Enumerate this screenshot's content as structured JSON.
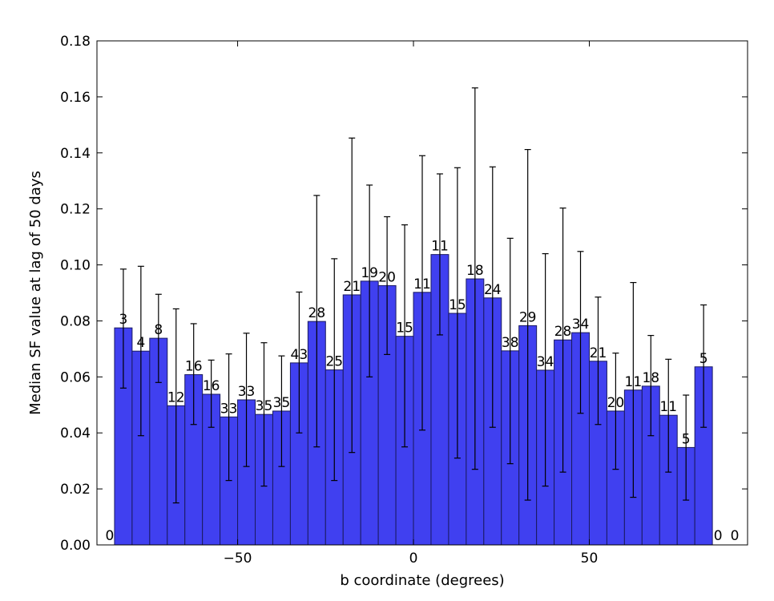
{
  "chart_data": {
    "type": "bar",
    "xlabel": "b coordinate (degrees)",
    "ylabel": "Median SF value at lag of 50 days",
    "xlim": [
      -90,
      95
    ],
    "ylim": [
      0,
      0.18
    ],
    "xticks": [
      -50,
      0,
      50
    ],
    "xtick_labels": [
      "−50",
      "0",
      "50"
    ],
    "yticks": [
      0,
      0.02,
      0.04,
      0.06,
      0.08,
      0.1,
      0.12,
      0.14,
      0.16,
      0.18
    ],
    "ytick_labels": [
      "0.00",
      "0.02",
      "0.04",
      "0.06",
      "0.08",
      "0.10",
      "0.12",
      "0.14",
      "0.16",
      "0.18"
    ],
    "bar_color": "#4040f0",
    "bar_edge_color": "#1a1a60",
    "bin_width": 5,
    "bins": [
      {
        "left": -90,
        "value": 0,
        "err_low": 0,
        "err_high": 0,
        "count": "0"
      },
      {
        "left": -85,
        "value": 0.0775,
        "err_low": 0.056,
        "err_high": 0.0985,
        "count": "3"
      },
      {
        "left": -80,
        "value": 0.0692,
        "err_low": 0.039,
        "err_high": 0.0995,
        "count": "4"
      },
      {
        "left": -75,
        "value": 0.0738,
        "err_low": 0.058,
        "err_high": 0.0895,
        "count": "8"
      },
      {
        "left": -70,
        "value": 0.0497,
        "err_low": 0.015,
        "err_high": 0.0843,
        "count": "12"
      },
      {
        "left": -65,
        "value": 0.0608,
        "err_low": 0.043,
        "err_high": 0.079,
        "count": "16"
      },
      {
        "left": -60,
        "value": 0.0538,
        "err_low": 0.042,
        "err_high": 0.066,
        "count": "16"
      },
      {
        "left": -55,
        "value": 0.0457,
        "err_low": 0.023,
        "err_high": 0.0682,
        "count": "33"
      },
      {
        "left": -50,
        "value": 0.0518,
        "err_low": 0.028,
        "err_high": 0.0756,
        "count": "33"
      },
      {
        "left": -45,
        "value": 0.0466,
        "err_low": 0.021,
        "err_high": 0.0722,
        "count": "35"
      },
      {
        "left": -40,
        "value": 0.0478,
        "err_low": 0.028,
        "err_high": 0.0675,
        "count": "35"
      },
      {
        "left": -35,
        "value": 0.065,
        "err_low": 0.04,
        "err_high": 0.0903,
        "count": "43"
      },
      {
        "left": -30,
        "value": 0.0798,
        "err_low": 0.035,
        "err_high": 0.1248,
        "count": "28"
      },
      {
        "left": -25,
        "value": 0.0625,
        "err_low": 0.023,
        "err_high": 0.1022,
        "count": "25"
      },
      {
        "left": -20,
        "value": 0.0893,
        "err_low": 0.033,
        "err_high": 0.1453,
        "count": "21"
      },
      {
        "left": -15,
        "value": 0.0942,
        "err_low": 0.06,
        "err_high": 0.1285,
        "count": "19"
      },
      {
        "left": -10,
        "value": 0.0926,
        "err_low": 0.068,
        "err_high": 0.1172,
        "count": "20"
      },
      {
        "left": -5,
        "value": 0.0745,
        "err_low": 0.035,
        "err_high": 0.1143,
        "count": "15"
      },
      {
        "left": 0,
        "value": 0.0902,
        "err_low": 0.041,
        "err_high": 0.139,
        "count": "11"
      },
      {
        "left": 5,
        "value": 0.1037,
        "err_low": 0.075,
        "err_high": 0.1325,
        "count": "11"
      },
      {
        "left": 10,
        "value": 0.0827,
        "err_low": 0.031,
        "err_high": 0.1347,
        "count": "15"
      },
      {
        "left": 15,
        "value": 0.095,
        "err_low": 0.027,
        "err_high": 0.1632,
        "count": "18"
      },
      {
        "left": 20,
        "value": 0.0882,
        "err_low": 0.042,
        "err_high": 0.135,
        "count": "24"
      },
      {
        "left": 25,
        "value": 0.0693,
        "err_low": 0.029,
        "err_high": 0.1095,
        "count": "38"
      },
      {
        "left": 30,
        "value": 0.0783,
        "err_low": 0.016,
        "err_high": 0.1412,
        "count": "29"
      },
      {
        "left": 35,
        "value": 0.0624,
        "err_low": 0.021,
        "err_high": 0.104,
        "count": "34"
      },
      {
        "left": 40,
        "value": 0.0732,
        "err_low": 0.026,
        "err_high": 0.1203,
        "count": "28"
      },
      {
        "left": 45,
        "value": 0.0758,
        "err_low": 0.047,
        "err_high": 0.1048,
        "count": "34"
      },
      {
        "left": 50,
        "value": 0.0656,
        "err_low": 0.043,
        "err_high": 0.0885,
        "count": "21"
      },
      {
        "left": 55,
        "value": 0.0478,
        "err_low": 0.027,
        "err_high": 0.0685,
        "count": "20"
      },
      {
        "left": 60,
        "value": 0.0553,
        "err_low": 0.017,
        "err_high": 0.0937,
        "count": "11"
      },
      {
        "left": 65,
        "value": 0.0567,
        "err_low": 0.039,
        "err_high": 0.0748,
        "count": "18"
      },
      {
        "left": 70,
        "value": 0.0463,
        "err_low": 0.026,
        "err_high": 0.0663,
        "count": "11"
      },
      {
        "left": 75,
        "value": 0.0348,
        "err_low": 0.016,
        "err_high": 0.0535,
        "count": "5"
      },
      {
        "left": 80,
        "value": 0.0636,
        "err_low": 0.042,
        "err_high": 0.0857,
        "count": "5"
      },
      {
        "left": 85,
        "value": 0,
        "err_low": 0,
        "err_high": 0,
        "count": "0"
      },
      {
        "left": 90,
        "value": 0,
        "err_low": 0,
        "err_high": 0,
        "count": "0"
      }
    ]
  }
}
